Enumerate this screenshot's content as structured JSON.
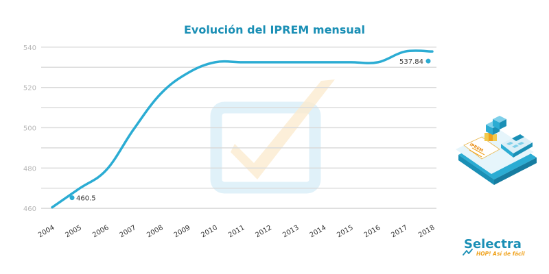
{
  "chart_data": {
    "type": "line",
    "title": "Evolución del IPREM mensual",
    "x": [
      2004,
      2005,
      2006,
      2007,
      2008,
      2009,
      2010,
      2011,
      2012,
      2013,
      2014,
      2015,
      2016,
      2017,
      2018
    ],
    "series": [
      {
        "values": [
          460.5,
          469.8,
          479.1,
          499.2,
          516.9,
          527.2,
          532.51,
          532.51,
          532.51,
          532.51,
          532.51,
          532.51,
          532.51,
          537.84,
          537.84
        ]
      }
    ],
    "point_labels": [
      {
        "x": 2004,
        "value": 460.5,
        "label": "460.5"
      },
      {
        "x": 2018,
        "value": 537.84,
        "label": "537.84"
      }
    ],
    "yticks": [
      460,
      480,
      500,
      520,
      540
    ],
    "ylim": [
      458,
      543
    ],
    "xlim": [
      2004,
      2018
    ],
    "grid": true,
    "line_color": "#2bacd3",
    "title_color": "#1a8fb5",
    "tick_color": "#b8b8b8",
    "grid_color": "#d9d9d9"
  },
  "brand": {
    "name": "Selectra",
    "tagline": "HOP! Así de fácil",
    "name_color": "#1a8fb5",
    "tagline_color": "#f0a21c"
  },
  "illustration": {
    "document_label": "IPREM"
  }
}
